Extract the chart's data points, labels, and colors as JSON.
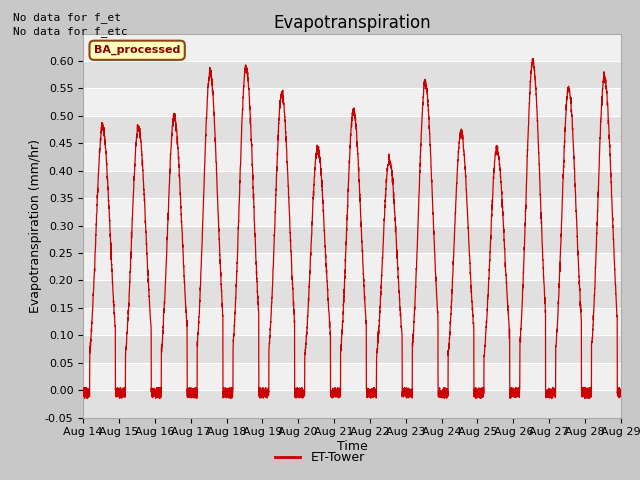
{
  "title": "Evapotranspiration",
  "xlabel": "Time",
  "ylabel": "Evapotranspiration (mm/hr)",
  "ylim": [
    -0.05,
    0.65
  ],
  "yticks": [
    -0.05,
    0.0,
    0.05,
    0.1,
    0.15,
    0.2,
    0.25,
    0.3,
    0.35,
    0.4,
    0.45,
    0.5,
    0.55,
    0.6
  ],
  "xtick_labels": [
    "Aug 14",
    "Aug 15",
    "Aug 16",
    "Aug 17",
    "Aug 18",
    "Aug 19",
    "Aug 20",
    "Aug 21",
    "Aug 22",
    "Aug 23",
    "Aug 24",
    "Aug 25",
    "Aug 26",
    "Aug 27",
    "Aug 28",
    "Aug 29"
  ],
  "no_data_text_1": "No data for f_et",
  "no_data_text_2": "No data for f_etc",
  "legend_label": "ET-Tower",
  "legend_box_label": "BA_processed",
  "line_color": "#cc0000",
  "fig_bg_color": "#c8c8c8",
  "plot_bg_color": "#f0f0f0",
  "grid_color": "#ffffff",
  "band_color_dark": "#e0e0e0",
  "band_color_light": "#f0f0f0",
  "title_fontsize": 12,
  "axis_fontsize": 9,
  "tick_fontsize": 8,
  "daily_peaks": [
    0.48,
    0.48,
    0.5,
    0.58,
    0.59,
    0.54,
    0.44,
    0.51,
    0.42,
    0.56,
    0.47,
    0.44,
    0.6,
    0.55,
    0.57
  ],
  "n_days": 15,
  "points_per_day": 288
}
